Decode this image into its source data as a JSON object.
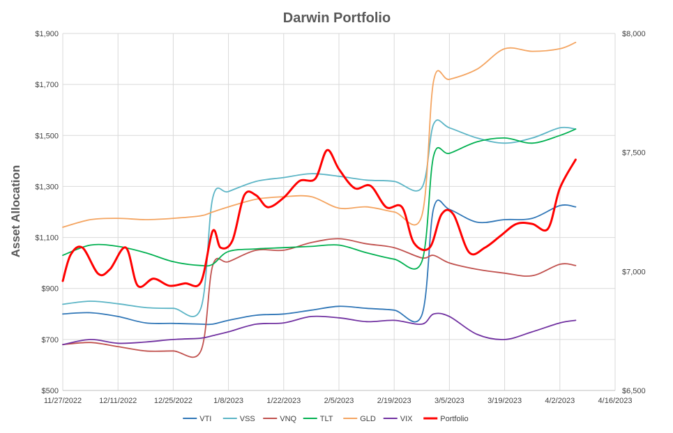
{
  "chart_data": {
    "type": "line",
    "title": "Darwin Portfolio",
    "xlabel": "",
    "ylabel": "Asset Allocation",
    "xlim": [
      "11/27/2022",
      "4/16/2023"
    ],
    "ylim": [
      500,
      1900
    ],
    "y2lim": [
      6500,
      8000
    ],
    "x_tick_labels": [
      "11/27/2022",
      "12/11/2022",
      "12/25/2022",
      "1/8/2023",
      "1/22/2023",
      "2/5/2023",
      "2/19/2023",
      "3/5/2023",
      "3/19/2023",
      "4/2/2023",
      "4/16/2023"
    ],
    "y_tick_labels": [
      "$500",
      "$700",
      "$900",
      "$1,100",
      "$1,300",
      "$1,500",
      "$1,700",
      "$1,900"
    ],
    "y2_tick_labels": [
      "$6,500",
      "$7,000",
      "$7,500",
      "$8,000"
    ],
    "grid": true,
    "legend_position": "bottom",
    "series": [
      {
        "name": "VTI",
        "axis": "left",
        "color": "#2e75b6",
        "x": [
          "11/27/2022",
          "12/4/2022",
          "12/11/2022",
          "12/18/2022",
          "12/25/2022",
          "1/1/2023",
          "1/4/2023",
          "1/8/2023",
          "1/15/2023",
          "1/22/2023",
          "1/29/2023",
          "2/5/2023",
          "2/12/2023",
          "2/19/2023",
          "2/26/2023",
          "3/1/2023",
          "3/5/2023",
          "3/12/2023",
          "3/19/2023",
          "3/26/2023",
          "4/2/2023",
          "4/6/2023"
        ],
        "values": [
          800,
          805,
          790,
          765,
          763,
          760,
          760,
          775,
          795,
          800,
          815,
          830,
          822,
          815,
          795,
          1215,
          1210,
          1160,
          1170,
          1175,
          1225,
          1220
        ]
      },
      {
        "name": "VSS",
        "axis": "left",
        "color": "#5ab4c5",
        "x": [
          "11/27/2022",
          "12/4/2022",
          "12/11/2022",
          "12/18/2022",
          "12/25/2022",
          "1/1/2023",
          "1/4/2023",
          "1/8/2023",
          "1/15/2023",
          "1/22/2023",
          "1/29/2023",
          "2/5/2023",
          "2/12/2023",
          "2/19/2023",
          "2/26/2023",
          "3/1/2023",
          "3/5/2023",
          "3/12/2023",
          "3/19/2023",
          "3/26/2023",
          "4/2/2023",
          "4/6/2023"
        ],
        "values": [
          838,
          850,
          840,
          825,
          822,
          822,
          1255,
          1280,
          1320,
          1335,
          1350,
          1340,
          1325,
          1320,
          1295,
          1545,
          1530,
          1490,
          1470,
          1490,
          1530,
          1525
        ]
      },
      {
        "name": "VNQ",
        "axis": "left",
        "color": "#c0504d",
        "x": [
          "11/27/2022",
          "12/4/2022",
          "12/11/2022",
          "12/18/2022",
          "12/25/2022",
          "1/1/2023",
          "1/4/2023",
          "1/8/2023",
          "1/15/2023",
          "1/22/2023",
          "1/29/2023",
          "2/5/2023",
          "2/12/2023",
          "2/19/2023",
          "2/26/2023",
          "3/1/2023",
          "3/5/2023",
          "3/12/2023",
          "3/19/2023",
          "3/26/2023",
          "4/2/2023",
          "4/6/2023"
        ],
        "values": [
          680,
          688,
          672,
          655,
          655,
          655,
          990,
          1005,
          1050,
          1050,
          1080,
          1095,
          1075,
          1060,
          1020,
          1030,
          1000,
          975,
          960,
          950,
          995,
          990
        ]
      },
      {
        "name": "TLT",
        "axis": "left",
        "color": "#00b050",
        "x": [
          "11/27/2022",
          "12/4/2022",
          "12/11/2022",
          "12/18/2022",
          "12/25/2022",
          "1/1/2023",
          "1/4/2023",
          "1/8/2023",
          "1/15/2023",
          "1/22/2023",
          "1/29/2023",
          "2/5/2023",
          "2/12/2023",
          "2/19/2023",
          "2/26/2023",
          "3/1/2023",
          "3/5/2023",
          "3/12/2023",
          "3/19/2023",
          "3/26/2023",
          "4/2/2023",
          "4/6/2023"
        ],
        "values": [
          1030,
          1070,
          1065,
          1040,
          1005,
          990,
          995,
          1045,
          1055,
          1060,
          1065,
          1070,
          1040,
          1015,
          1005,
          1420,
          1430,
          1475,
          1490,
          1470,
          1500,
          1525
        ]
      },
      {
        "name": "GLD",
        "axis": "left",
        "color": "#f4a460",
        "x": [
          "11/27/2022",
          "12/4/2022",
          "12/11/2022",
          "12/18/2022",
          "12/25/2022",
          "1/1/2023",
          "1/4/2023",
          "1/8/2023",
          "1/15/2023",
          "1/22/2023",
          "1/29/2023",
          "2/5/2023",
          "2/12/2023",
          "2/19/2023",
          "2/26/2023",
          "3/1/2023",
          "3/5/2023",
          "3/12/2023",
          "3/19/2023",
          "3/26/2023",
          "4/2/2023",
          "4/6/2023"
        ],
        "values": [
          1140,
          1170,
          1175,
          1170,
          1175,
          1185,
          1200,
          1220,
          1250,
          1260,
          1260,
          1215,
          1220,
          1200,
          1185,
          1715,
          1720,
          1760,
          1840,
          1830,
          1840,
          1865
        ]
      },
      {
        "name": "VIX",
        "axis": "left",
        "color": "#7030a0",
        "x": [
          "11/27/2022",
          "12/4/2022",
          "12/11/2022",
          "12/18/2022",
          "12/25/2022",
          "1/1/2023",
          "1/4/2023",
          "1/8/2023",
          "1/15/2023",
          "1/22/2023",
          "1/29/2023",
          "2/5/2023",
          "2/12/2023",
          "2/19/2023",
          "2/26/2023",
          "3/1/2023",
          "3/5/2023",
          "3/12/2023",
          "3/19/2023",
          "3/26/2023",
          "4/2/2023",
          "4/6/2023"
        ],
        "values": [
          680,
          700,
          685,
          690,
          700,
          705,
          715,
          730,
          760,
          765,
          790,
          785,
          770,
          775,
          760,
          800,
          790,
          720,
          700,
          730,
          765,
          775
        ]
      },
      {
        "name": "Portfolio",
        "axis": "right",
        "color": "#ff0000",
        "x": [
          "11/27/2022",
          "11/29/2022",
          "12/2/2022",
          "12/6/2022",
          "12/9/2022",
          "12/13/2022",
          "12/16/2022",
          "12/20/2022",
          "12/24/2022",
          "12/28/2022",
          "1/1/2023",
          "1/4/2023",
          "1/6/2023",
          "1/9/2023",
          "1/12/2023",
          "1/15/2023",
          "1/18/2023",
          "1/22/2023",
          "1/26/2023",
          "1/30/2023",
          "2/2/2023",
          "2/5/2023",
          "2/9/2023",
          "2/13/2023",
          "2/17/2023",
          "2/21/2023",
          "2/24/2023",
          "2/28/2023",
          "3/3/2023",
          "3/6/2023",
          "3/10/2023",
          "3/14/2023",
          "3/18/2023",
          "3/22/2023",
          "3/26/2023",
          "3/30/2023",
          "4/2/2023",
          "4/6/2023"
        ],
        "values": [
          6960,
          7070,
          7100,
          6990,
          7010,
          7100,
          6940,
          6970,
          6940,
          6950,
          6955,
          7170,
          7100,
          7130,
          7320,
          7320,
          7270,
          7310,
          7380,
          7390,
          7510,
          7430,
          7350,
          7360,
          7270,
          7270,
          7120,
          7100,
          7240,
          7240,
          7080,
          7100,
          7150,
          7200,
          7200,
          7180,
          7350,
          7470
        ]
      }
    ]
  }
}
